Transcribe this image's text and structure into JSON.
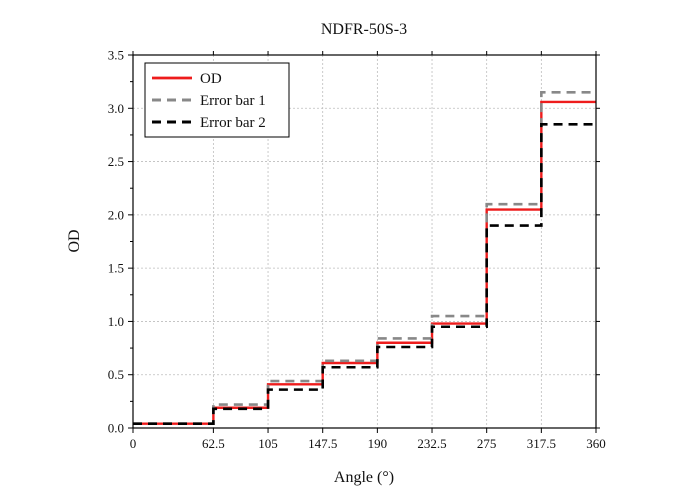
{
  "chart_data": {
    "type": "line",
    "title": "NDFR-50S-3",
    "xlabel": "Angle (°)",
    "ylabel": "OD",
    "xlim": [
      0,
      360
    ],
    "ylim": [
      0,
      3.5
    ],
    "x_ticks": [
      0,
      62.5,
      105,
      147.5,
      190,
      232.5,
      275,
      317.5,
      360
    ],
    "x_tick_labels": [
      "0",
      "62.5",
      "105",
      "147.5",
      "190",
      "232.5",
      "275",
      "317.5",
      "360"
    ],
    "y_ticks": [
      0,
      0.5,
      1.0,
      1.5,
      2.0,
      2.5,
      3.0,
      3.5
    ],
    "y_tick_labels": [
      "0.0",
      "0.5",
      "1.0",
      "1.5",
      "2.0",
      "2.5",
      "3.0",
      "3.5"
    ],
    "grid": true,
    "legend_position": "top-left",
    "series": [
      {
        "name": "OD",
        "color": "#ee1c1c",
        "dash": "solid",
        "steps": [
          {
            "x0": 0,
            "x1": 62.5,
            "y": 0.04
          },
          {
            "x0": 62.5,
            "x1": 105,
            "y": 0.19
          },
          {
            "x0": 105,
            "x1": 147.5,
            "y": 0.41
          },
          {
            "x0": 147.5,
            "x1": 190,
            "y": 0.61
          },
          {
            "x0": 190,
            "x1": 232.5,
            "y": 0.8
          },
          {
            "x0": 232.5,
            "x1": 275,
            "y": 0.98
          },
          {
            "x0": 275,
            "x1": 317.5,
            "y": 2.05
          },
          {
            "x0": 317.5,
            "x1": 360,
            "y": 3.06
          }
        ]
      },
      {
        "name": "Error bar 1",
        "color": "#888888",
        "dash": "dashed",
        "steps": [
          {
            "x0": 0,
            "x1": 62.5,
            "y": 0.04
          },
          {
            "x0": 62.5,
            "x1": 105,
            "y": 0.22
          },
          {
            "x0": 105,
            "x1": 147.5,
            "y": 0.44
          },
          {
            "x0": 147.5,
            "x1": 190,
            "y": 0.63
          },
          {
            "x0": 190,
            "x1": 232.5,
            "y": 0.84
          },
          {
            "x0": 232.5,
            "x1": 275,
            "y": 1.05
          },
          {
            "x0": 275,
            "x1": 317.5,
            "y": 2.1
          },
          {
            "x0": 317.5,
            "x1": 360,
            "y": 3.15
          }
        ]
      },
      {
        "name": "Error bar 2",
        "color": "#000000",
        "dash": "dashed",
        "steps": [
          {
            "x0": 0,
            "x1": 62.5,
            "y": 0.04
          },
          {
            "x0": 62.5,
            "x1": 105,
            "y": 0.18
          },
          {
            "x0": 105,
            "x1": 147.5,
            "y": 0.36
          },
          {
            "x0": 147.5,
            "x1": 190,
            "y": 0.57
          },
          {
            "x0": 190,
            "x1": 232.5,
            "y": 0.76
          },
          {
            "x0": 232.5,
            "x1": 275,
            "y": 0.95
          },
          {
            "x0": 275,
            "x1": 317.5,
            "y": 1.9
          },
          {
            "x0": 317.5,
            "x1": 360,
            "y": 2.85
          }
        ]
      }
    ]
  }
}
